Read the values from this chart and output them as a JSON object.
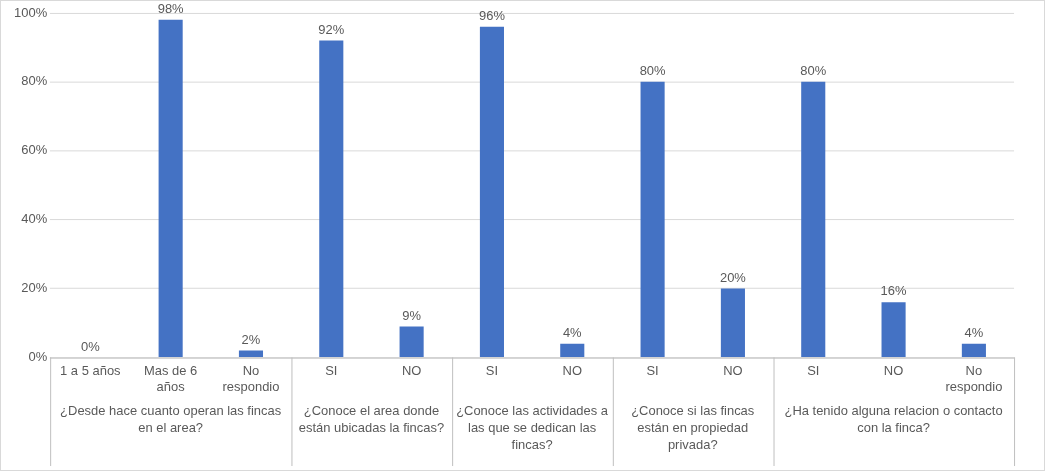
{
  "chart_data": {
    "type": "bar",
    "categories": [
      "1 a 5 años",
      "Mas de 6 años",
      "No respondio",
      "SI",
      "NO",
      "SI",
      "NO",
      "SI",
      "NO",
      "SI",
      "NO",
      "No respondio"
    ],
    "values": [
      0,
      98,
      2,
      92,
      9,
      96,
      4,
      80,
      20,
      80,
      16,
      4
    ],
    "value_labels": [
      "0%",
      "98%",
      "2%",
      "92%",
      "9%",
      "96%",
      "4%",
      "80%",
      "20%",
      "80%",
      "16%",
      "4%"
    ],
    "color": "#4472c4",
    "ylim": [
      0,
      100
    ],
    "yticks": [
      {
        "value": 0,
        "label": "0%"
      },
      {
        "value": 20,
        "label": "20%"
      },
      {
        "value": 40,
        "label": "40%"
      },
      {
        "value": 60,
        "label": "60%"
      },
      {
        "value": 80,
        "label": "80%"
      },
      {
        "value": 100,
        "label": "100%"
      }
    ],
    "grid": "y",
    "legend": false,
    "annotations": [
      "¿Desde hace cuanto operan las fincas en el area?",
      "¿Conoce el area donde están ubicadas la fincas?",
      "¿Conoce las actividades a las que se dedican las fincas?",
      "¿Conoce si las fincas están en propiedad privada?",
      "¿Ha tenido alguna relacion o contacto con la finca?"
    ]
  }
}
